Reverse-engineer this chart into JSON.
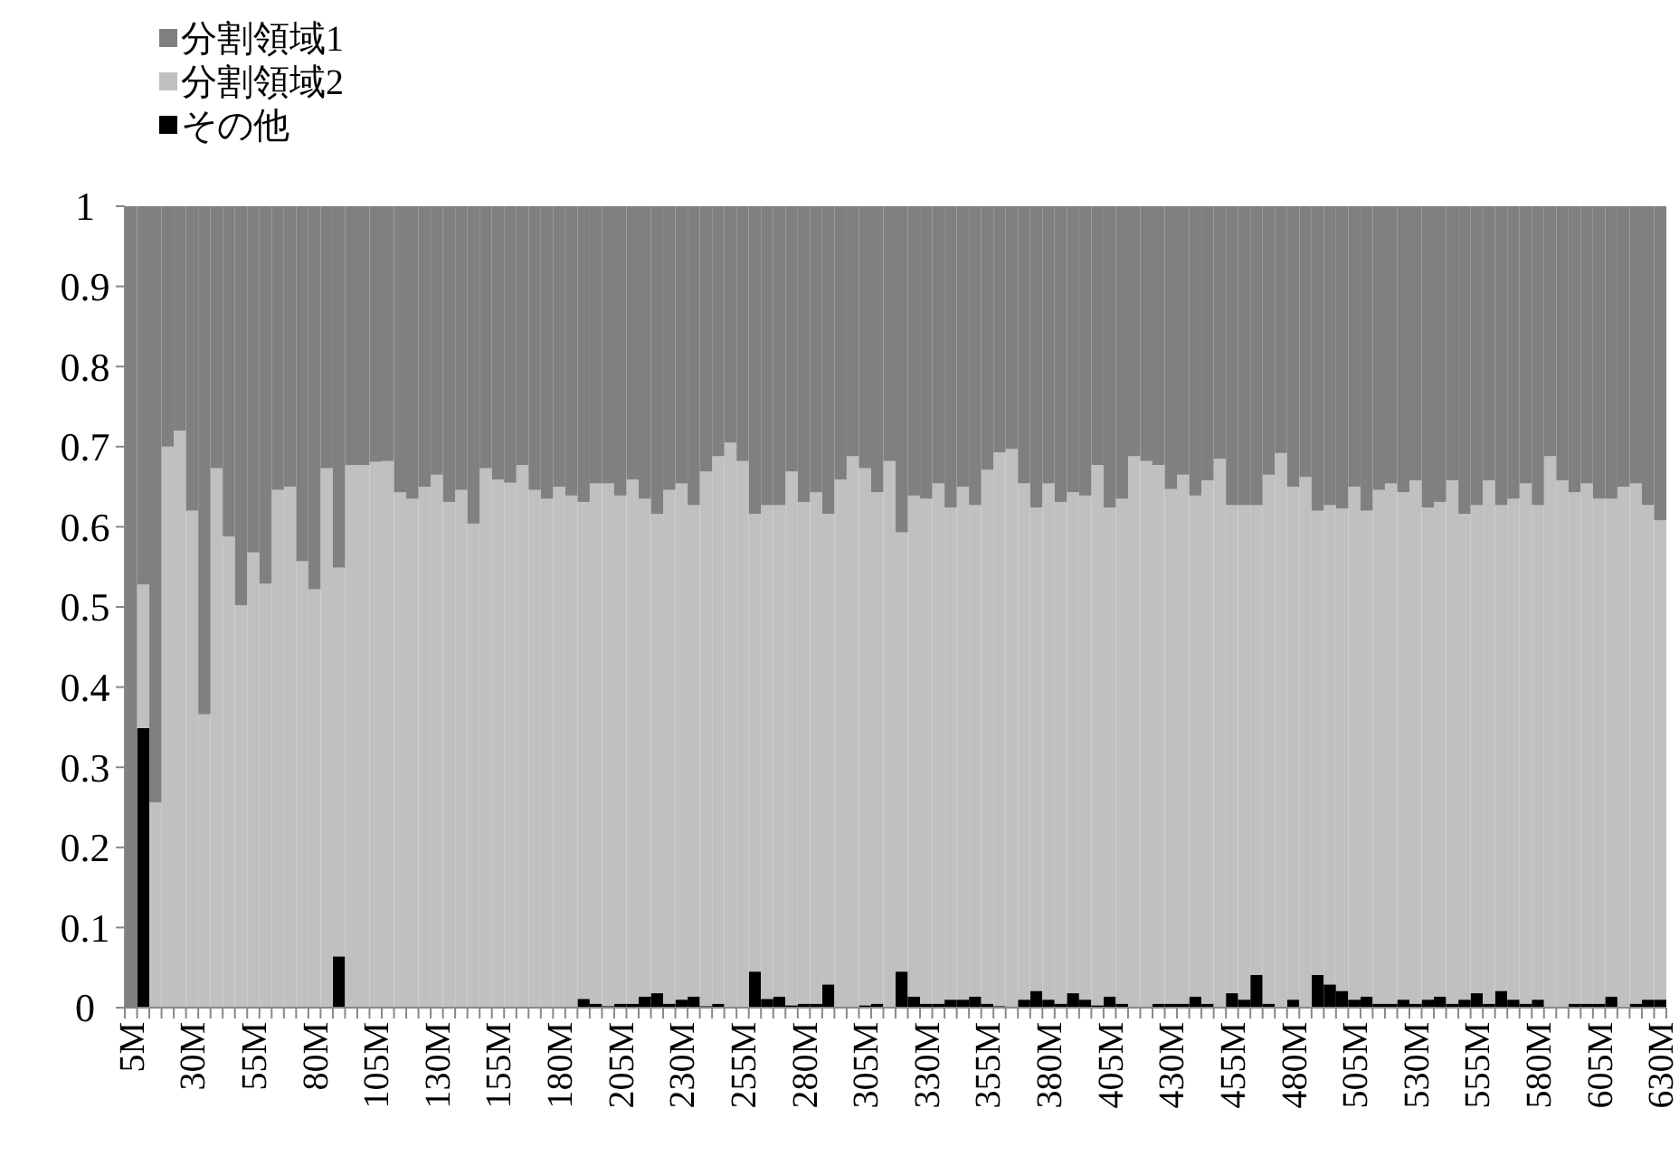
{
  "chart_data": {
    "type": "bar",
    "stacked": true,
    "legend": "top left",
    "grid": false,
    "categories": [
      "5M",
      null,
      null,
      null,
      null,
      "30M",
      null,
      null,
      null,
      null,
      "55M",
      null,
      null,
      null,
      null,
      "80M",
      null,
      null,
      null,
      null,
      "105M",
      null,
      null,
      null,
      null,
      "130M",
      null,
      null,
      null,
      null,
      "155M",
      null,
      null,
      null,
      null,
      "180M",
      null,
      null,
      null,
      null,
      "205M",
      null,
      null,
      null,
      null,
      "230M",
      null,
      null,
      null,
      null,
      "255M",
      null,
      null,
      null,
      null,
      "280M",
      null,
      null,
      null,
      null,
      "305M",
      null,
      null,
      null,
      null,
      "330M",
      null,
      null,
      null,
      null,
      "355M",
      null,
      null,
      null,
      null,
      "380M",
      null,
      null,
      null,
      null,
      "405M",
      null,
      null,
      null,
      null,
      "430M",
      null,
      null,
      null,
      null,
      "455M",
      null,
      null,
      null,
      null,
      "480M",
      null,
      null,
      null,
      null,
      "505M",
      null,
      null,
      null,
      null,
      "530M",
      null,
      null,
      null,
      null,
      "555M",
      null,
      null,
      null,
      null,
      "580M",
      null,
      null,
      null,
      null,
      "605M",
      null,
      null,
      null,
      null,
      "630M"
    ],
    "ylim": [
      0,
      1
    ],
    "yticks": [
      0,
      0.1,
      0.2,
      0.3,
      0.4,
      0.5,
      0.6,
      0.7,
      0.8,
      0.9,
      1
    ],
    "series": [
      {
        "name": "その他",
        "color": "#000000",
        "values": [
          0,
          0.349,
          0,
          0,
          0,
          0,
          0,
          0,
          0,
          0,
          0,
          0,
          0,
          0,
          0,
          0,
          0,
          0.064,
          0,
          0,
          0,
          0,
          0,
          0,
          0,
          0,
          0,
          0,
          0,
          0,
          0,
          0,
          0,
          0,
          0,
          0,
          0,
          0.011,
          0.005,
          0.002,
          0.005,
          0.005,
          0.014,
          0.018,
          0.005,
          0.01,
          0.014,
          0.002,
          0.005,
          0,
          0,
          0.045,
          0.011,
          0.014,
          0.003,
          0.005,
          0.005,
          0.029,
          0,
          0,
          0.003,
          0.005,
          0,
          0.045,
          0.014,
          0.005,
          0.005,
          0.01,
          0.01,
          0.014,
          0.005,
          0.002,
          0,
          0.01,
          0.021,
          0.01,
          0.005,
          0.018,
          0.01,
          0.003,
          0.014,
          0.005,
          0,
          0,
          0.005,
          0.005,
          0.005,
          0.014,
          0.005,
          0,
          0.018,
          0.01,
          0.041,
          0.005,
          0,
          0.01,
          0,
          0.041,
          0.029,
          0.021,
          0.01,
          0.014,
          0.005,
          0.005,
          0.01,
          0.005,
          0.01,
          0.014,
          0.005,
          0.01,
          0.018,
          0.005,
          0.021,
          0.01,
          0.005,
          0.01,
          0,
          0,
          0.005,
          0.005,
          0.005,
          0.014,
          0,
          0.005,
          0.01,
          0.01
        ]
      },
      {
        "name": "分割領域2",
        "color": "#c0c0c0",
        "values": [
          0,
          0.179,
          0.256,
          0.7,
          0.72,
          0.62,
          0.366,
          0.673,
          0.588,
          0.502,
          0.568,
          0.529,
          0.646,
          0.65,
          0.557,
          0.522,
          0.673,
          0.485,
          0.677,
          0.677,
          0.681,
          0.682,
          0.643,
          0.635,
          0.65,
          0.665,
          0.631,
          0.646,
          0.604,
          0.673,
          0.659,
          0.655,
          0.677,
          0.646,
          0.635,
          0.65,
          0.639,
          0.62,
          0.649,
          0.652,
          0.634,
          0.654,
          0.621,
          0.598,
          0.641,
          0.644,
          0.613,
          0.667,
          0.683,
          0.705,
          0.682,
          0.571,
          0.616,
          0.613,
          0.666,
          0.626,
          0.638,
          0.587,
          0.659,
          0.688,
          0.67,
          0.638,
          0.682,
          0.548,
          0.625,
          0.63,
          0.649,
          0.614,
          0.64,
          0.613,
          0.666,
          0.691,
          0.697,
          0.644,
          0.603,
          0.644,
          0.626,
          0.625,
          0.629,
          0.674,
          0.61,
          0.63,
          0.688,
          0.682,
          0.672,
          0.642,
          0.66,
          0.625,
          0.653,
          0.685,
          0.609,
          0.617,
          0.586,
          0.66,
          0.692,
          0.64,
          0.662,
          0.579,
          0.598,
          0.602,
          0.64,
          0.606,
          0.641,
          0.649,
          0.633,
          0.653,
          0.614,
          0.617,
          0.653,
          0.606,
          0.609,
          0.653,
          0.606,
          0.625,
          0.649,
          0.617,
          0.688,
          0.658,
          0.638,
          0.649,
          0.63,
          0.621,
          0.65,
          0.649,
          0.617,
          0.598
        ]
      },
      {
        "name": "分割領域1",
        "color": "#808080",
        "values": [
          1,
          0.472,
          0.744,
          0.3,
          0.28,
          0.38,
          0.634,
          0.327,
          0.412,
          0.498,
          0.432,
          0.471,
          0.354,
          0.35,
          0.443,
          0.478,
          0.327,
          0.451,
          0.323,
          0.323,
          0.319,
          0.318,
          0.357,
          0.365,
          0.35,
          0.335,
          0.369,
          0.354,
          0.396,
          0.327,
          0.341,
          0.345,
          0.323,
          0.354,
          0.365,
          0.35,
          0.361,
          0.369,
          0.346,
          0.346,
          0.361,
          0.341,
          0.365,
          0.384,
          0.354,
          0.346,
          0.373,
          0.331,
          0.312,
          0.295,
          0.318,
          0.384,
          0.373,
          0.373,
          0.331,
          0.369,
          0.357,
          0.384,
          0.341,
          0.312,
          0.327,
          0.357,
          0.318,
          0.407,
          0.361,
          0.365,
          0.346,
          0.376,
          0.35,
          0.373,
          0.329,
          0.307,
          0.303,
          0.346,
          0.376,
          0.346,
          0.369,
          0.357,
          0.361,
          0.323,
          0.376,
          0.365,
          0.312,
          0.318,
          0.323,
          0.353,
          0.335,
          0.361,
          0.342,
          0.315,
          0.373,
          0.373,
          0.373,
          0.335,
          0.308,
          0.35,
          0.338,
          0.38,
          0.373,
          0.377,
          0.35,
          0.38,
          0.354,
          0.346,
          0.357,
          0.342,
          0.376,
          0.369,
          0.342,
          0.384,
          0.373,
          0.342,
          0.373,
          0.365,
          0.346,
          0.373,
          0.312,
          0.342,
          0.357,
          0.346,
          0.365,
          0.365,
          0.35,
          0.346,
          0.373,
          0.392
        ]
      }
    ]
  }
}
